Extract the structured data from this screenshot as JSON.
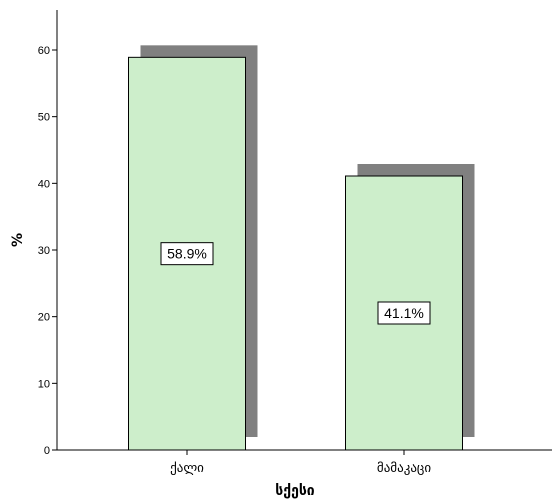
{
  "chart_data": {
    "type": "bar",
    "categories": [
      "ქალი",
      "მამაკაცი"
    ],
    "values": [
      58.9,
      41.1
    ],
    "data_labels": [
      "58.9%",
      "41.1%"
    ],
    "xlabel": "სქესი",
    "ylabel": "%",
    "ylim": [
      0,
      65
    ],
    "yticks": [
      0,
      10,
      20,
      30,
      40,
      50,
      60
    ],
    "grid": false,
    "legend": "none",
    "colors": {
      "bar_fill": "#cdeecb",
      "bar_stroke": "#000000",
      "shadow": "#808080",
      "axis": "#000000"
    }
  }
}
